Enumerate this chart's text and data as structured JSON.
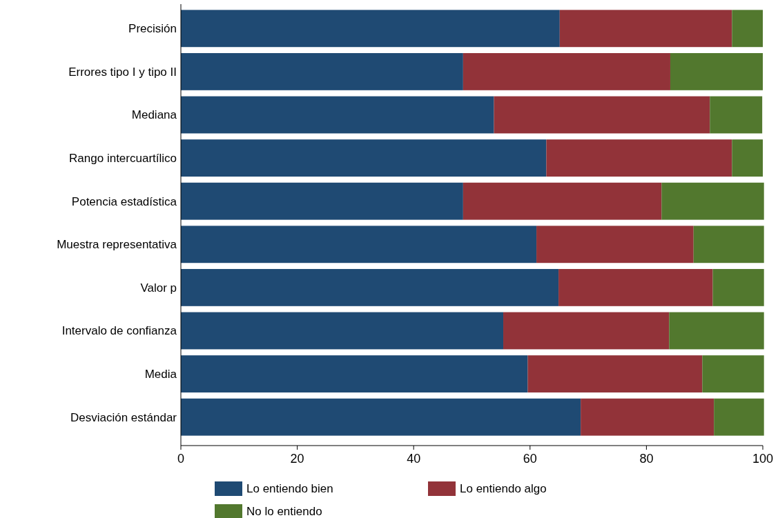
{
  "chart_data": {
    "type": "bar",
    "orientation": "horizontal",
    "stacked": true,
    "categories": [
      "Precisión",
      "Errores tipo I y tipo II",
      "Mediana",
      "Rango intercuartílico",
      "Potencia estadística",
      "Muestra representativa",
      "Valor p",
      "Intervalo de confianza",
      "Media",
      "Desviación estándar"
    ],
    "series": [
      {
        "name": "Lo entiendo bien",
        "color": "#1f4a73",
        "values": [
          65.1,
          48.5,
          53.8,
          62.8,
          48.5,
          61.1,
          64.9,
          55.4,
          59.6,
          68.7
        ]
      },
      {
        "name": "Lo entiendo algo",
        "color": "#923339",
        "values": [
          29.6,
          35.6,
          37.1,
          31.9,
          34.1,
          27.0,
          26.5,
          28.5,
          30.0,
          22.9
        ]
      },
      {
        "name": "No lo entiendo",
        "color": "#52782e",
        "values": [
          5.3,
          15.9,
          9.0,
          5.3,
          17.6,
          12.1,
          8.8,
          16.3,
          10.6,
          8.6
        ]
      }
    ],
    "xlim": [
      0,
      100
    ],
    "xticks": [
      0,
      20,
      40,
      60,
      80,
      100
    ],
    "grid": false,
    "legend": "bottom"
  }
}
